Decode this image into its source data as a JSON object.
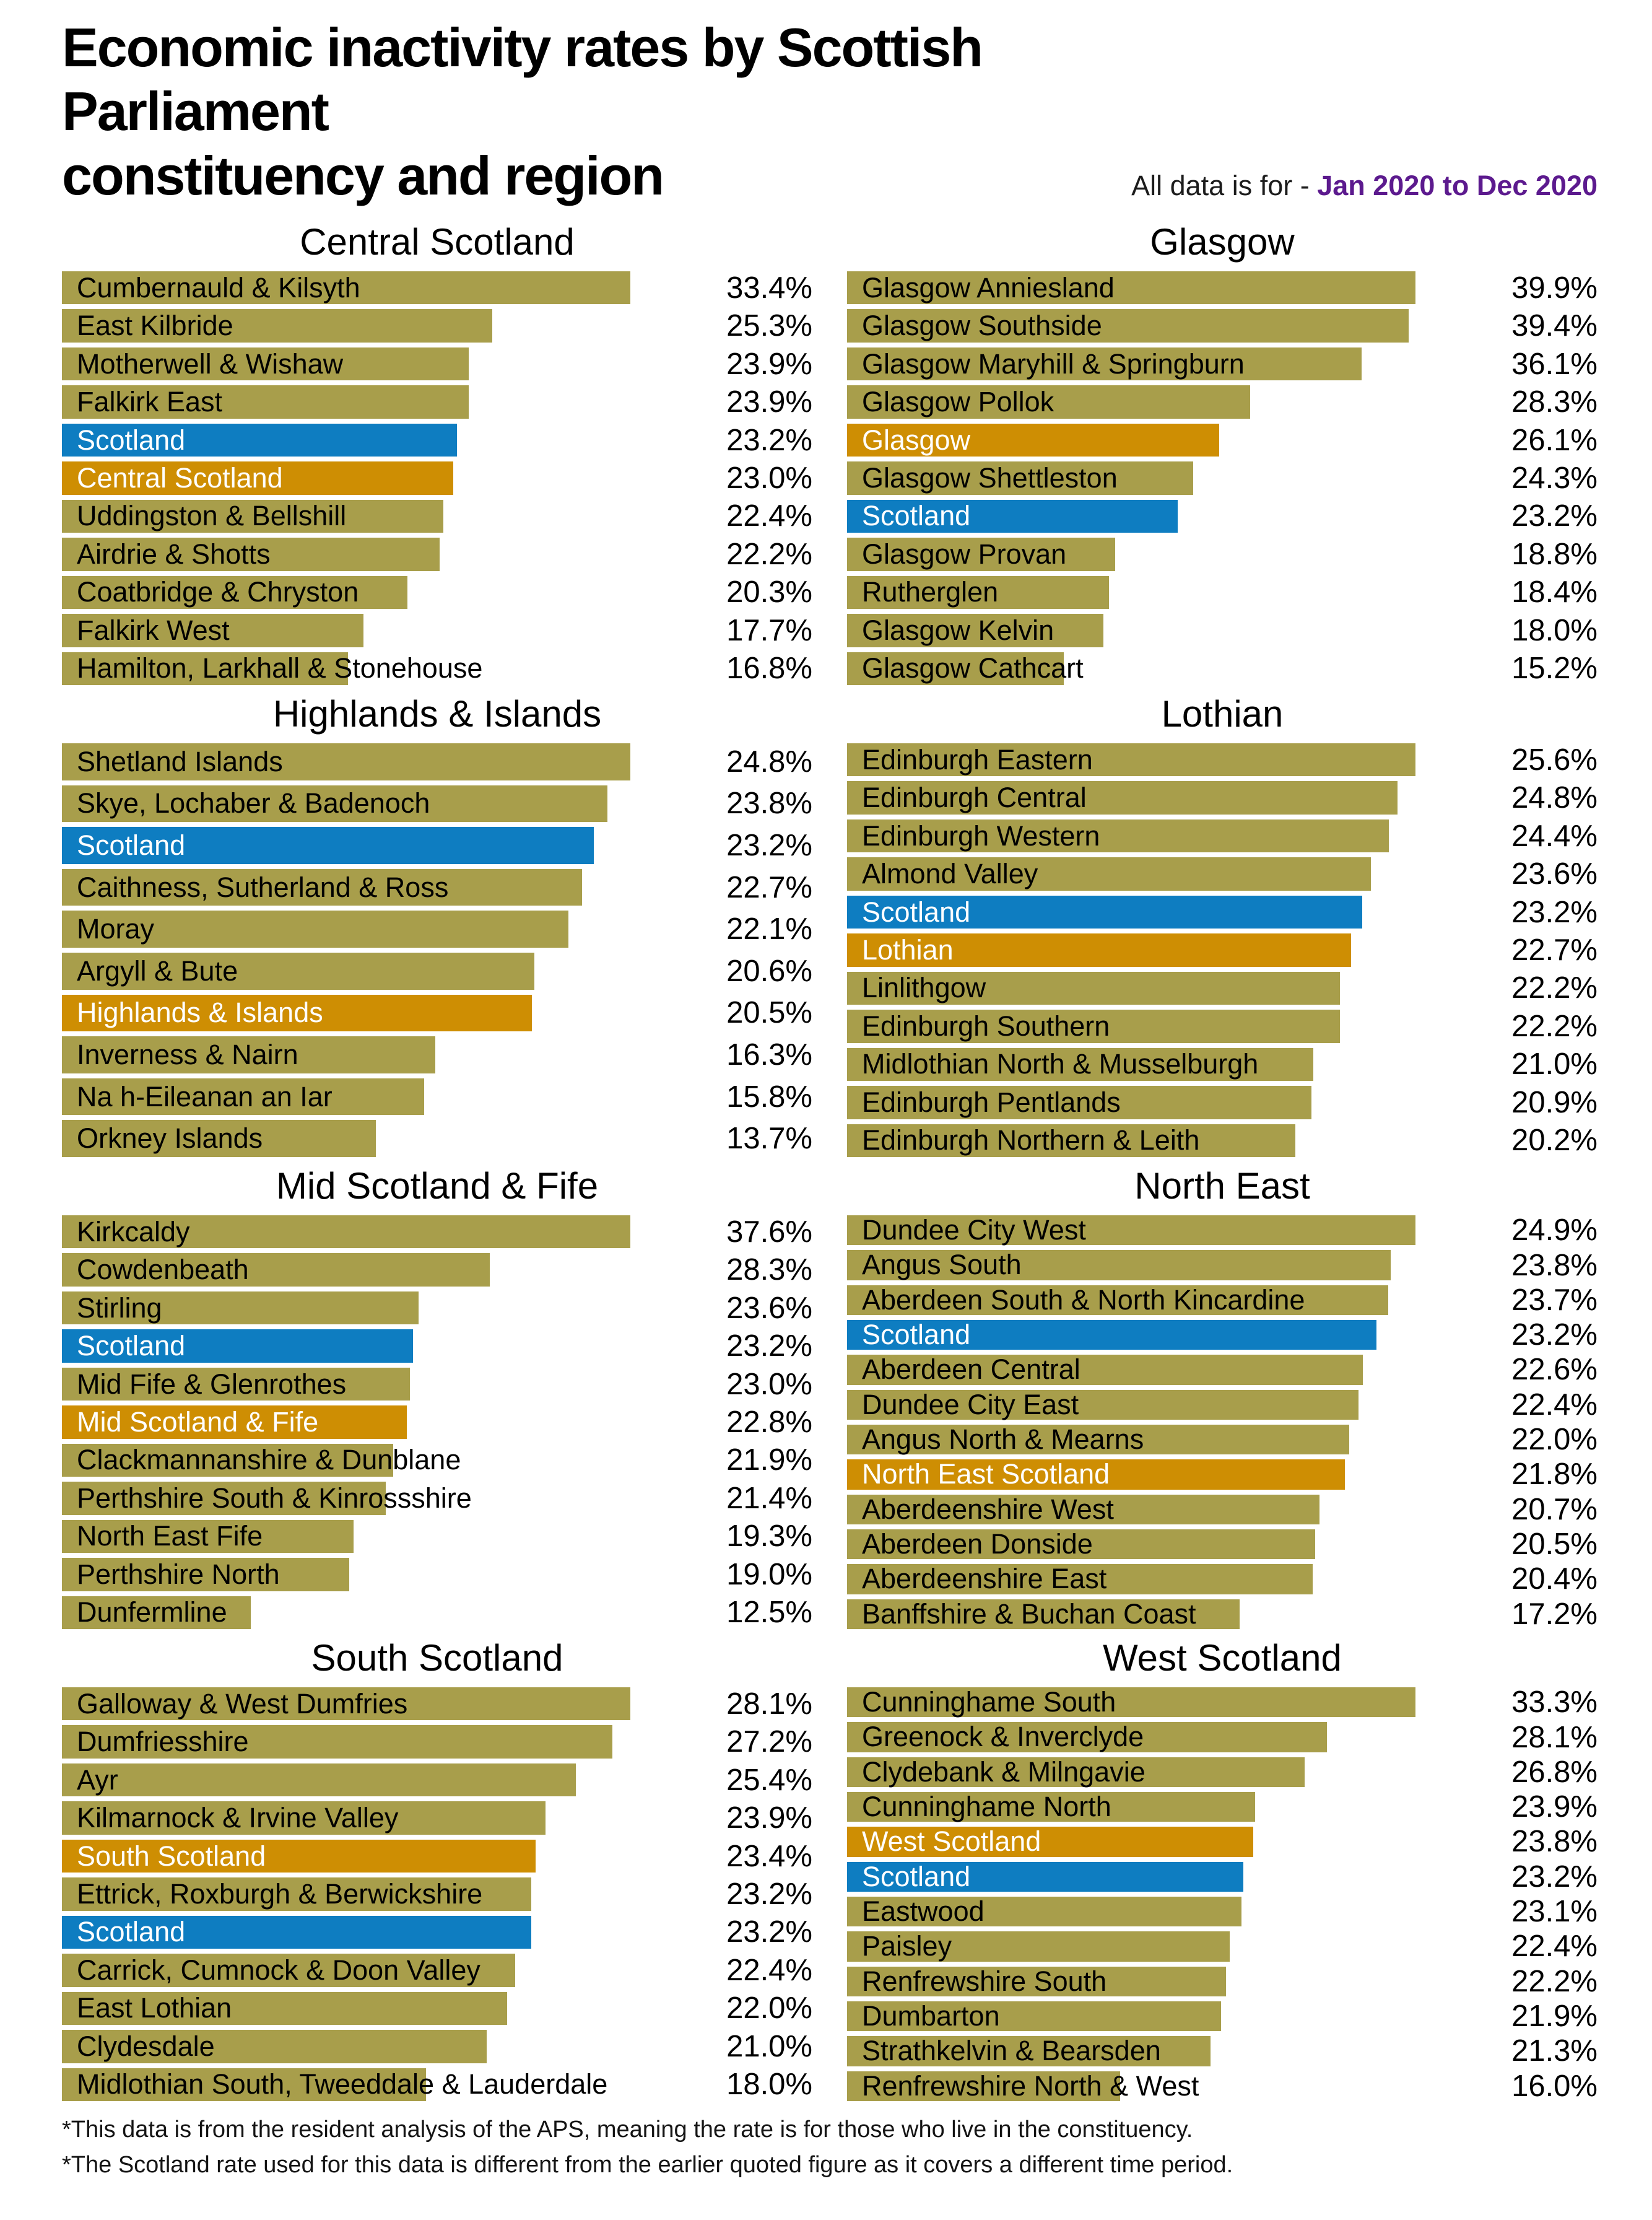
{
  "title_line1": "Economic inactivity rates by Scottish Parliament",
  "title_line2": "constituency and region",
  "subtitle_prefix": "All data is for - ",
  "subtitle_period": "Jan 2020 to Dec 2020",
  "footnotes": [
    "*This data is from the resident analysis of the APS, meaning the rate is for those who live in the constituency.",
    "*The Scotland rate used for this data is different from the earlier quoted figure as it covers a different time period."
  ],
  "colors": {
    "constituency": "#a89e4b",
    "scotland": "#0e7dc1",
    "region": "#ce8e03",
    "period_text": "#5c1a8e"
  },
  "chart_data": [
    {
      "type": "bar",
      "orientation": "horizontal",
      "unit": "%",
      "title": "Central Scotland",
      "bars": [
        {
          "label": "Cumbernauld & Kilsyth",
          "value": 33.4,
          "kind": "constituency"
        },
        {
          "label": "East Kilbride",
          "value": 25.3,
          "kind": "constituency"
        },
        {
          "label": "Motherwell & Wishaw",
          "value": 23.9,
          "kind": "constituency"
        },
        {
          "label": "Falkirk East",
          "value": 23.9,
          "kind": "constituency"
        },
        {
          "label": "Scotland",
          "value": 23.2,
          "kind": "scotland"
        },
        {
          "label": "Central Scotland",
          "value": 23.0,
          "kind": "region"
        },
        {
          "label": "Uddingston & Bellshill",
          "value": 22.4,
          "kind": "constituency"
        },
        {
          "label": "Airdrie & Shotts",
          "value": 22.2,
          "kind": "constituency"
        },
        {
          "label": "Coatbridge & Chryston",
          "value": 20.3,
          "kind": "constituency"
        },
        {
          "label": "Falkirk West",
          "value": 17.7,
          "kind": "constituency"
        },
        {
          "label": "Hamilton, Larkhall & Stonehouse",
          "value": 16.8,
          "kind": "constituency"
        }
      ]
    },
    {
      "type": "bar",
      "orientation": "horizontal",
      "unit": "%",
      "title": "Glasgow",
      "bars": [
        {
          "label": "Glasgow Anniesland",
          "value": 39.9,
          "kind": "constituency"
        },
        {
          "label": "Glasgow Southside",
          "value": 39.4,
          "kind": "constituency"
        },
        {
          "label": "Glasgow Maryhill & Springburn",
          "value": 36.1,
          "kind": "constituency"
        },
        {
          "label": "Glasgow Pollok",
          "value": 28.3,
          "kind": "constituency"
        },
        {
          "label": "Glasgow",
          "value": 26.1,
          "kind": "region"
        },
        {
          "label": "Glasgow Shettleston",
          "value": 24.3,
          "kind": "constituency"
        },
        {
          "label": "Scotland",
          "value": 23.2,
          "kind": "scotland"
        },
        {
          "label": "Glasgow Provan",
          "value": 18.8,
          "kind": "constituency"
        },
        {
          "label": "Rutherglen",
          "value": 18.4,
          "kind": "constituency"
        },
        {
          "label": "Glasgow Kelvin",
          "value": 18.0,
          "kind": "constituency"
        },
        {
          "label": "Glasgow Cathcart",
          "value": 15.2,
          "kind": "constituency"
        }
      ]
    },
    {
      "type": "bar",
      "orientation": "horizontal",
      "unit": "%",
      "title": "Highlands & Islands",
      "bars": [
        {
          "label": "Shetland Islands",
          "value": 24.8,
          "kind": "constituency"
        },
        {
          "label": "Skye, Lochaber & Badenoch",
          "value": 23.8,
          "kind": "constituency"
        },
        {
          "label": "Scotland",
          "value": 23.2,
          "kind": "scotland"
        },
        {
          "label": "Caithness, Sutherland & Ross",
          "value": 22.7,
          "kind": "constituency"
        },
        {
          "label": "Moray",
          "value": 22.1,
          "kind": "constituency"
        },
        {
          "label": "Argyll & Bute",
          "value": 20.6,
          "kind": "constituency"
        },
        {
          "label": "Highlands & Islands",
          "value": 20.5,
          "kind": "region"
        },
        {
          "label": "Inverness & Nairn",
          "value": 16.3,
          "kind": "constituency"
        },
        {
          "label": "Na h-Eileanan an Iar",
          "value": 15.8,
          "kind": "constituency"
        },
        {
          "label": "Orkney Islands",
          "value": 13.7,
          "kind": "constituency"
        }
      ]
    },
    {
      "type": "bar",
      "orientation": "horizontal",
      "unit": "%",
      "title": "Lothian",
      "bars": [
        {
          "label": "Edinburgh Eastern",
          "value": 25.6,
          "kind": "constituency"
        },
        {
          "label": "Edinburgh Central",
          "value": 24.8,
          "kind": "constituency"
        },
        {
          "label": "Edinburgh Western",
          "value": 24.4,
          "kind": "constituency"
        },
        {
          "label": "Almond Valley",
          "value": 23.6,
          "kind": "constituency"
        },
        {
          "label": "Scotland",
          "value": 23.2,
          "kind": "scotland"
        },
        {
          "label": "Lothian",
          "value": 22.7,
          "kind": "region"
        },
        {
          "label": "Linlithgow",
          "value": 22.2,
          "kind": "constituency"
        },
        {
          "label": "Edinburgh Southern",
          "value": 22.2,
          "kind": "constituency"
        },
        {
          "label": "Midlothian North & Musselburgh",
          "value": 21.0,
          "kind": "constituency"
        },
        {
          "label": "Edinburgh Pentlands",
          "value": 20.9,
          "kind": "constituency"
        },
        {
          "label": "Edinburgh Northern & Leith",
          "value": 20.2,
          "kind": "constituency"
        }
      ]
    },
    {
      "type": "bar",
      "orientation": "horizontal",
      "unit": "%",
      "title": "Mid Scotland & Fife",
      "bars": [
        {
          "label": "Kirkcaldy",
          "value": 37.6,
          "kind": "constituency"
        },
        {
          "label": "Cowdenbeath",
          "value": 28.3,
          "kind": "constituency"
        },
        {
          "label": "Stirling",
          "value": 23.6,
          "kind": "constituency"
        },
        {
          "label": "Scotland",
          "value": 23.2,
          "kind": "scotland"
        },
        {
          "label": "Mid Fife & Glenrothes",
          "value": 23.0,
          "kind": "constituency"
        },
        {
          "label": "Mid Scotland & Fife",
          "value": 22.8,
          "kind": "region"
        },
        {
          "label": "Clackmannanshire & Dunblane",
          "value": 21.9,
          "kind": "constituency"
        },
        {
          "label": "Perthshire South & Kinrossshire",
          "value": 21.4,
          "kind": "constituency"
        },
        {
          "label": "North East Fife",
          "value": 19.3,
          "kind": "constituency"
        },
        {
          "label": "Perthshire North",
          "value": 19.0,
          "kind": "constituency"
        },
        {
          "label": "Dunfermline",
          "value": 12.5,
          "kind": "constituency"
        }
      ]
    },
    {
      "type": "bar",
      "orientation": "horizontal",
      "unit": "%",
      "title": "North East",
      "bars": [
        {
          "label": "Dundee City West",
          "value": 24.9,
          "kind": "constituency"
        },
        {
          "label": "Angus South",
          "value": 23.8,
          "kind": "constituency"
        },
        {
          "label": "Aberdeen South & North Kincardine",
          "value": 23.7,
          "kind": "constituency"
        },
        {
          "label": "Scotland",
          "value": 23.2,
          "kind": "scotland"
        },
        {
          "label": "Aberdeen Central",
          "value": 22.6,
          "kind": "constituency"
        },
        {
          "label": "Dundee City East",
          "value": 22.4,
          "kind": "constituency"
        },
        {
          "label": "Angus North & Mearns",
          "value": 22.0,
          "kind": "constituency"
        },
        {
          "label": "North East Scotland",
          "value": 21.8,
          "kind": "region"
        },
        {
          "label": "Aberdeenshire West",
          "value": 20.7,
          "kind": "constituency"
        },
        {
          "label": "Aberdeen Donside",
          "value": 20.5,
          "kind": "constituency"
        },
        {
          "label": "Aberdeenshire East",
          "value": 20.4,
          "kind": "constituency"
        },
        {
          "label": "Banffshire & Buchan Coast",
          "value": 17.2,
          "kind": "constituency"
        }
      ]
    },
    {
      "type": "bar",
      "orientation": "horizontal",
      "unit": "%",
      "title": "South Scotland",
      "bars": [
        {
          "label": "Galloway & West Dumfries",
          "value": 28.1,
          "kind": "constituency"
        },
        {
          "label": "Dumfriesshire",
          "value": 27.2,
          "kind": "constituency"
        },
        {
          "label": "Ayr",
          "value": 25.4,
          "kind": "constituency"
        },
        {
          "label": "Kilmarnock & Irvine Valley",
          "value": 23.9,
          "kind": "constituency"
        },
        {
          "label": "South Scotland",
          "value": 23.4,
          "kind": "region"
        },
        {
          "label": "Ettrick, Roxburgh & Berwickshire",
          "value": 23.2,
          "kind": "constituency"
        },
        {
          "label": "Scotland",
          "value": 23.2,
          "kind": "scotland"
        },
        {
          "label": "Carrick, Cumnock & Doon Valley",
          "value": 22.4,
          "kind": "constituency"
        },
        {
          "label": "East Lothian",
          "value": 22.0,
          "kind": "constituency"
        },
        {
          "label": "Clydesdale",
          "value": 21.0,
          "kind": "constituency"
        },
        {
          "label": "Midlothian South, Tweeddale & Lauderdale",
          "value": 18.0,
          "kind": "constituency"
        }
      ]
    },
    {
      "type": "bar",
      "orientation": "horizontal",
      "unit": "%",
      "title": "West Scotland",
      "bars": [
        {
          "label": "Cunninghame South",
          "value": 33.3,
          "kind": "constituency"
        },
        {
          "label": "Greenock & Inverclyde",
          "value": 28.1,
          "kind": "constituency"
        },
        {
          "label": "Clydebank & Milngavie",
          "value": 26.8,
          "kind": "constituency"
        },
        {
          "label": "Cunninghame North",
          "value": 23.9,
          "kind": "constituency"
        },
        {
          "label": "West Scotland",
          "value": 23.8,
          "kind": "region"
        },
        {
          "label": "Scotland",
          "value": 23.2,
          "kind": "scotland"
        },
        {
          "label": "Eastwood",
          "value": 23.1,
          "kind": "constituency"
        },
        {
          "label": "Paisley",
          "value": 22.4,
          "kind": "constituency"
        },
        {
          "label": "Renfrewshire South",
          "value": 22.2,
          "kind": "constituency"
        },
        {
          "label": "Dumbarton",
          "value": 21.9,
          "kind": "constituency"
        },
        {
          "label": "Strathkelvin & Bearsden",
          "value": 21.3,
          "kind": "constituency"
        },
        {
          "label": "Renfrewshire North & West",
          "value": 16.0,
          "kind": "constituency"
        }
      ]
    }
  ]
}
